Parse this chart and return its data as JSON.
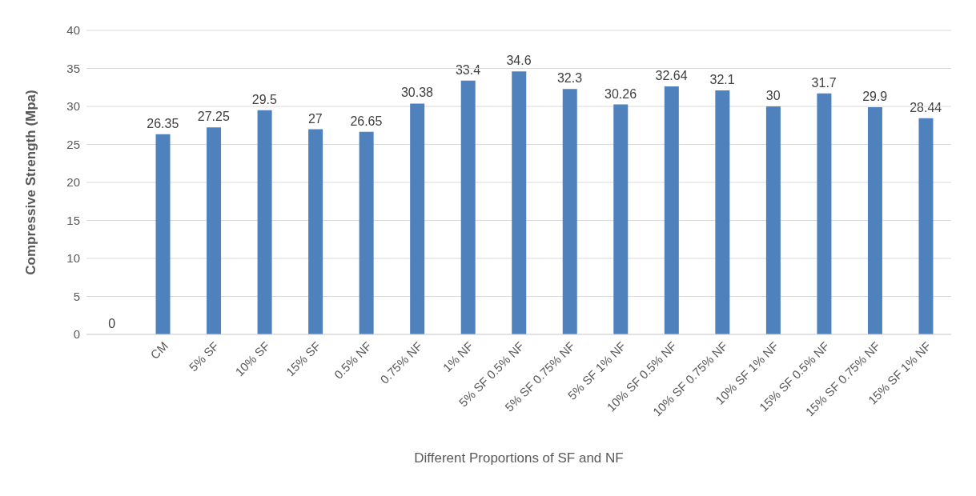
{
  "chart_data": {
    "type": "bar",
    "xlabel": "Different Proportions of SF and NF",
    "ylabel": "Compressive Strength (Mpa)",
    "categories": [
      null,
      "CM",
      "5% SF",
      "10% SF",
      "15% SF",
      "0.5% NF",
      "0.75% NF",
      "1% NF",
      "5% SF 0.5% NF",
      "5% SF 0.75% NF",
      "5% SF 1% NF",
      "10% SF 0.5% NF",
      "10% SF 0.75% NF",
      "10% SF 1% NF",
      "15% SF 0.5% NF",
      "15% SF 0.75% NF",
      "15% SF 1% NF"
    ],
    "values": [
      0,
      26.35,
      27.25,
      29.5,
      27,
      26.65,
      30.38,
      33.4,
      34.6,
      32.3,
      30.26,
      32.64,
      32.1,
      30,
      31.7,
      29.9,
      28.44
    ],
    "color": "#4f81bd",
    "ylim": [
      0,
      40
    ],
    "yticks": [
      0,
      5,
      10,
      15,
      20,
      25,
      30,
      35,
      40
    ],
    "grid": "y",
    "data_labels": true,
    "legend": false
  }
}
